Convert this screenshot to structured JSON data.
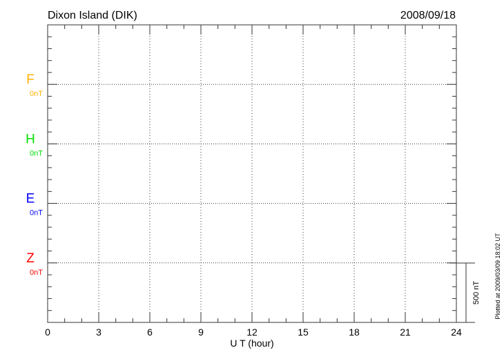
{
  "chart_data": {
    "type": "line",
    "title": "Dixon Island (DIK)",
    "date": "2008/09/18",
    "xlabel": "U T (hour)",
    "xlim": [
      0,
      24
    ],
    "xticks": [
      "0",
      "3",
      "6",
      "9",
      "12",
      "15",
      "18",
      "21",
      "24"
    ],
    "grid": true,
    "scale_label": "500 nT",
    "footnote": "Plotted at 2009/03/09 18:02 UT",
    "series": [
      {
        "name": "F",
        "baseline_label": "0nT",
        "color": "#ffb000",
        "values": []
      },
      {
        "name": "H",
        "baseline_label": "0nT",
        "color": "#00e000",
        "values": []
      },
      {
        "name": "E",
        "baseline_label": "0nT",
        "color": "#0000ff",
        "values": []
      },
      {
        "name": "Z",
        "baseline_label": "0nT",
        "color": "#ff0000",
        "values": []
      }
    ]
  }
}
